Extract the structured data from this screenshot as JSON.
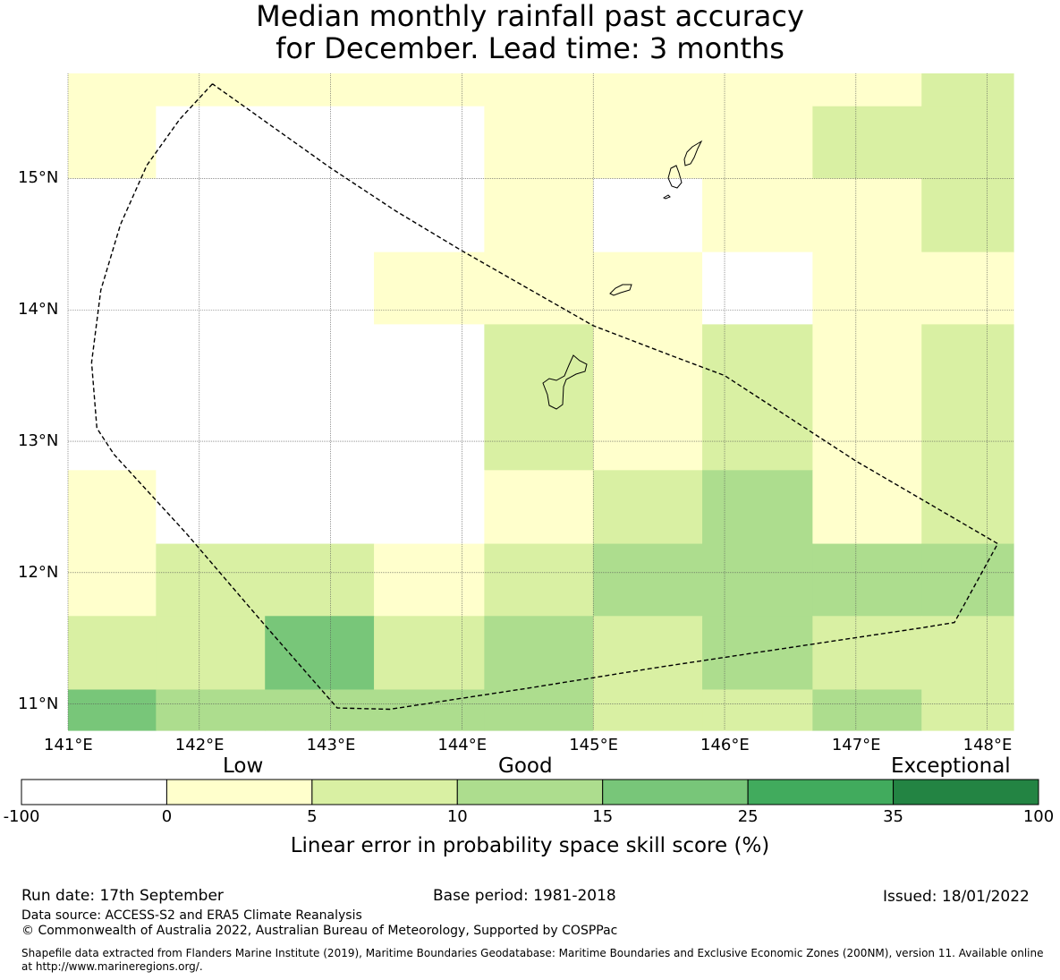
{
  "title": {
    "line1": "Median monthly rainfall past accuracy",
    "line2": "for December. Lead time: 3 months"
  },
  "map": {
    "lon_range": [
      141.0,
      148.2
    ],
    "lat_range": [
      10.8,
      15.8
    ],
    "x_ticks": [
      "141°E",
      "142°E",
      "143°E",
      "144°E",
      "145°E",
      "146°E",
      "147°E",
      "148°E"
    ],
    "y_ticks": [
      "15°N",
      "14°N",
      "13°N",
      "12°N",
      "11°N"
    ],
    "category_colors": {
      "w": "#ffffff",
      "y": "#ffffcc",
      "g1": "#d9f0a3",
      "g2": "#addd8e",
      "g3": "#78c679",
      "g4": "#41ab5d",
      "g5": "#238443"
    },
    "grid_columns_lon": [
      141.0,
      141.67,
      142.5,
      143.33,
      144.17,
      145.0,
      145.83,
      146.67,
      147.5,
      148.2
    ],
    "grid_rows_lat": [
      15.8,
      15.55,
      15.0,
      14.44,
      13.89,
      12.78,
      12.22,
      11.67,
      11.11,
      10.8
    ],
    "cells": [
      [
        "y",
        "y",
        "y",
        "y",
        "y",
        "y",
        "y",
        "y",
        "g1"
      ],
      [
        "y",
        "w",
        "w",
        "w",
        "y",
        "y",
        "y",
        "g1",
        "g1"
      ],
      [
        "w",
        "w",
        "w",
        "w",
        "y",
        "w",
        "y",
        "y",
        "g1"
      ],
      [
        "w",
        "w",
        "w",
        "y",
        "y",
        "y",
        "w",
        "y",
        "y"
      ],
      [
        "w",
        "w",
        "w",
        "w",
        "g1",
        "y",
        "g1",
        "y",
        "g1"
      ],
      [
        "y",
        "w",
        "w",
        "w",
        "y",
        "g1",
        "g2",
        "y",
        "g1"
      ],
      [
        "y",
        "g1",
        "g1",
        "y",
        "g1",
        "g2",
        "g2",
        "g2",
        "g2"
      ],
      [
        "g1",
        "g1",
        "g3",
        "g1",
        "g2",
        "g1",
        "g2",
        "g1",
        "g1"
      ],
      [
        "g3",
        "g2",
        "g2",
        "g2",
        "g2",
        "g1",
        "g1",
        "g2",
        "g1"
      ]
    ],
    "eez_boundary": [
      [
        142.1,
        15.72
      ],
      [
        141.85,
        15.45
      ],
      [
        141.6,
        15.1
      ],
      [
        141.4,
        14.65
      ],
      [
        141.25,
        14.15
      ],
      [
        141.18,
        13.6
      ],
      [
        141.22,
        13.1
      ],
      [
        141.35,
        12.9
      ],
      [
        141.9,
        12.3
      ],
      [
        142.5,
        11.6
      ],
      [
        143.05,
        10.97
      ],
      [
        143.45,
        10.96
      ],
      [
        144.5,
        11.12
      ],
      [
        145.5,
        11.28
      ],
      [
        146.5,
        11.43
      ],
      [
        147.5,
        11.58
      ],
      [
        147.75,
        11.62
      ],
      [
        148.08,
        12.22
      ],
      [
        147.0,
        12.85
      ],
      [
        146.0,
        13.5
      ],
      [
        145.6,
        13.65
      ],
      [
        145.0,
        13.88
      ],
      [
        144.0,
        14.45
      ],
      [
        143.5,
        14.75
      ],
      [
        143.0,
        15.08
      ],
      [
        142.1,
        15.72
      ]
    ]
  },
  "colorbar": {
    "category_words": [
      "Low",
      "Good",
      "Exceptional"
    ],
    "tick_labels": [
      "-100",
      "0",
      "5",
      "10",
      "15",
      "25",
      "35",
      "100"
    ],
    "segment_colors": [
      "#ffffff",
      "#ffffcc",
      "#d9f0a3",
      "#addd8e",
      "#78c679",
      "#41ab5d",
      "#238443"
    ],
    "title": "Linear error in probability space skill score (%)"
  },
  "footer": {
    "run_date": "Run date: 17th September",
    "base_period": "Base period: 1981-2018",
    "issued": "Issued: 18/01/2022",
    "data_source": "Data source: ACCESS-S2 and ERA5 Climate Reanalysis",
    "copyright": "© Commonwealth of Australia 2022, Australian Bureau of Meteorology, Supported by COSPPac",
    "shapefile_line1": "Shapefile data extracted from Flanders Marine Institute (2019), Maritime Boundaries Geodatabase: Maritime Boundaries and Exclusive Economic Zones (200NM), version 11. Available online",
    "shapefile_line2": "at http://www.marineregions.org/."
  }
}
